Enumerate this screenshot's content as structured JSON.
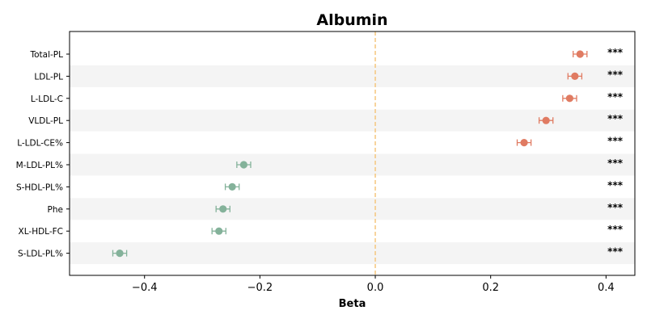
{
  "chart_data": {
    "type": "scatter",
    "title": "Albumin",
    "xlabel": "Beta",
    "ylabel": "",
    "xlim": [
      -0.53,
      0.45
    ],
    "xticks": [
      -0.4,
      -0.2,
      0.0,
      0.2,
      0.4
    ],
    "xtick_labels": [
      "−0.4",
      "−0.2",
      "0.0",
      "0.2",
      "0.4"
    ],
    "reference_line": 0.0,
    "grid": false,
    "colors": {
      "positive": "#e07b62",
      "negative": "#84b29a",
      "reference_line": "#f5c77e",
      "band": "#f4f4f4"
    },
    "categories": [
      "Total-PL",
      "LDL-PL",
      "L-LDL-C",
      "VLDL-PL",
      "L-LDL-CE%",
      "M-LDL-PL%",
      "S-HDL-PL%",
      "Phe",
      "XL-HDL-FC",
      "S-LDL-PL%"
    ],
    "beta": [
      0.355,
      0.346,
      0.337,
      0.296,
      0.258,
      -0.228,
      -0.248,
      -0.264,
      -0.271,
      -0.443
    ],
    "ci_low": [
      0.343,
      0.334,
      0.325,
      0.284,
      0.246,
      -0.24,
      -0.26,
      -0.276,
      -0.283,
      -0.455
    ],
    "ci_high": [
      0.367,
      0.358,
      0.349,
      0.308,
      0.27,
      -0.216,
      -0.236,
      -0.252,
      -0.259,
      -0.431
    ],
    "significance": [
      "***",
      "***",
      "***",
      "***",
      "***",
      "***",
      "***",
      "***",
      "***",
      "***"
    ]
  }
}
